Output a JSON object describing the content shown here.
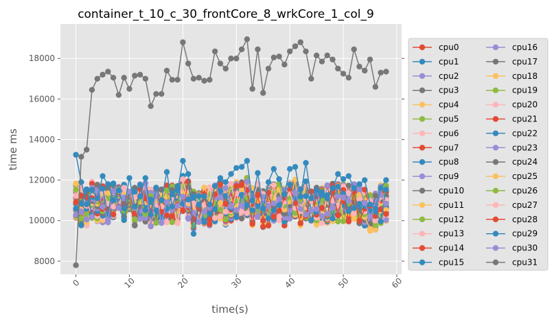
{
  "chart_data": {
    "type": "line",
    "title": "container_t_10_c_30_frontCore_8_wrkCore_1_col_9",
    "xlabel": "time(s)",
    "ylabel": "time ms",
    "xlim": [
      -2.9,
      60.9
    ],
    "ylim": [
      7350,
      19700
    ],
    "xticks": [
      0,
      10,
      20,
      30,
      40,
      50,
      60
    ],
    "yticks": [
      8000,
      10000,
      12000,
      14000,
      16000,
      18000
    ],
    "grid": true,
    "legend_position": "right, outside plot",
    "legend_columns": 2,
    "colors": [
      "#E24A33",
      "#348ABD",
      "#988ED5",
      "#777777",
      "#FBC15E",
      "#8EBA42",
      "#FFB5B8"
    ],
    "highlight_series": {
      "cpu31": [
        7800,
        13150,
        13500,
        16450,
        17000,
        17200,
        17350,
        17050,
        16200,
        17050,
        16500,
        17150,
        17200,
        17000,
        15650,
        16250,
        16250,
        17400,
        16950,
        16950,
        18800,
        17750,
        17000,
        17050,
        16900,
        16950,
        18350,
        17750,
        17500,
        18000,
        18000,
        18450,
        18950,
        16500,
        18450,
        16300,
        17500,
        18050,
        18100,
        17700,
        18350,
        18600,
        18800,
        18350,
        17000,
        18150,
        17850,
        18150,
        17950,
        17500,
        17250,
        17050,
        18450,
        17600,
        17400,
        17950,
        16600,
        17300,
        17350
      ],
      "cpu15": [
        13250,
        11900,
        10800,
        11500,
        11100,
        12200,
        11800,
        11000,
        11500,
        10600,
        12100,
        10700,
        11200,
        12100,
        10300,
        11600,
        11000,
        12400,
        10700,
        11500,
        12950,
        12300,
        9350,
        10800,
        11200,
        10800,
        11700,
        12100,
        11900,
        12300,
        12600,
        12650,
        12950,
        11000,
        12350,
        10600,
        11900,
        12550,
        12050,
        11300,
        12550,
        12650,
        11200,
        12850,
        11100,
        11500,
        11250,
        11100,
        11600,
        12300,
        12050,
        12200,
        11600,
        11800,
        12000,
        10800,
        10600,
        11600,
        12000
      ]
    },
    "series_names": [
      "cpu0",
      "cpu1",
      "cpu2",
      "cpu3",
      "cpu4",
      "cpu5",
      "cpu6",
      "cpu7",
      "cpu8",
      "cpu9",
      "cpu10",
      "cpu11",
      "cpu12",
      "cpu13",
      "cpu14",
      "cpu15",
      "cpu16",
      "cpu17",
      "cpu18",
      "cpu19",
      "cpu20",
      "cpu21",
      "cpu22",
      "cpu23",
      "cpu24",
      "cpu25",
      "cpu26",
      "cpu27",
      "cpu28",
      "cpu29",
      "cpu30",
      "cpu31"
    ],
    "background_band_center": [
      11000,
      10700,
      10600,
      11000,
      10900,
      10750,
      10800,
      11000,
      10800,
      10900,
      11100,
      10700,
      10900,
      10900,
      10600,
      10700,
      10600,
      10800,
      10800,
      10800,
      11300,
      11000,
      10500,
      10700,
      10800,
      10700,
      10900,
      11000,
      10700,
      10900,
      11000,
      11000,
      11200,
      10700,
      11000,
      10600,
      10700,
      10900,
      10900,
      10700,
      11000,
      11100,
      10700,
      11000,
      10700,
      10700,
      10800,
      10800,
      10900,
      10900,
      10900,
      10800,
      10900,
      10800,
      10700,
      10400,
      10400,
      10800,
      10800
    ],
    "background_band_halfwidth": 950
  }
}
